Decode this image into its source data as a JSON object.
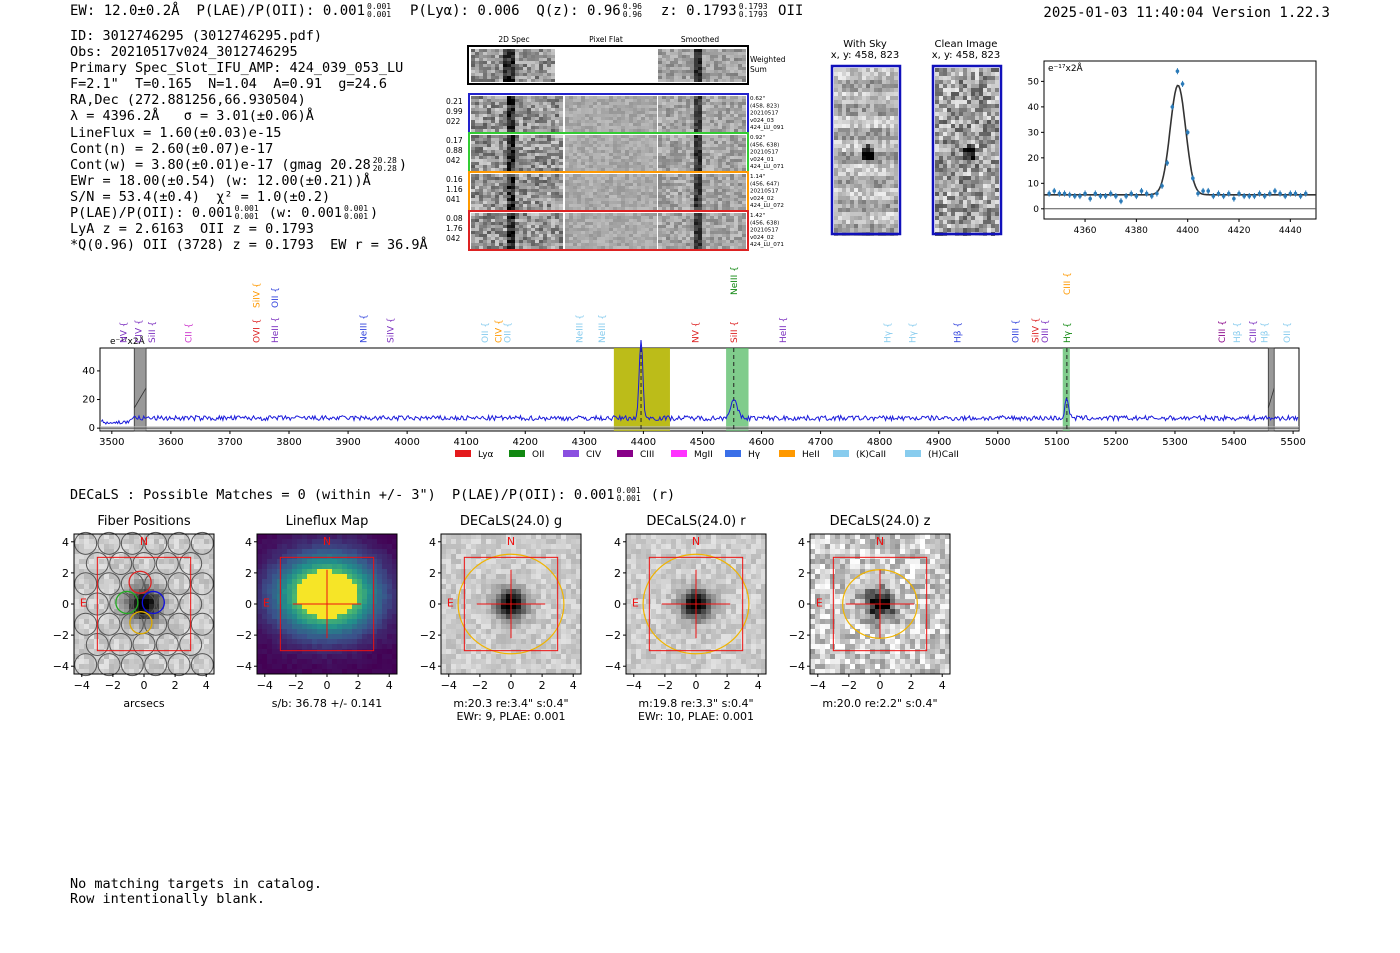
{
  "header": {
    "ew_label": "EW: 12.0±0.2Å",
    "plae_label": "P(LAE)/P(OII): 0.001",
    "plae_hi": "0.001",
    "plae_lo": "0.001",
    "plya_label": "P(Lyα): 0.006",
    "qz_label": "Q(z): 0.96",
    "qz_hi": "0.96",
    "qz_lo": "0.96",
    "z_label": "z: 0.1793",
    "z_hi": "0.1793",
    "z_lo": "0.1793",
    "line_name": "OII",
    "timestamp": "2025-01-03 11:40:04",
    "version": "Version 1.22.3"
  },
  "info": {
    "id": "ID: 3012746295 (3012746295.pdf)",
    "obs": "Obs: 20210517v024_3012746295",
    "primary": "Primary Spec_Slot_IFU_AMP: 424_039_053_LU",
    "fwhm": "F=2.1\"  T=0.165  N=1.04  A=0.91  g=24.6",
    "radec": "RA,Dec (272.881256,66.930504)",
    "lambda": "λ = 4396.2Å   σ = 3.01(±0.06)Å",
    "lineflux": "LineFlux = 1.60(±0.03)e-15",
    "contn": "Cont(n) = 2.60(±0.07)e-17",
    "contw": "Cont(w) = 3.80(±0.01)e-17 (gmag 20.28",
    "gmag_hi": "20.28",
    "gmag_lo": "20.28",
    "ewr": "EWr = 18.00(±0.54) (w: 12.00(±0.21))Å",
    "sn": "S/N = 53.4(±0.4)  χ² = 1.0(±0.2)",
    "plae_a": "P(LAE)/P(OII): 0.001",
    "plae_a_hi": "0.001",
    "plae_a_lo": "0.001",
    "plae_b": "(w: 0.001",
    "plae_b_hi": "0.001",
    "plae_b_lo": "0.001",
    "lya": "LyA z = 2.6163  OII z = 0.1793",
    "q": "*Q(0.96) OII (3728) z = 0.1793  EW r = 36.9Å"
  },
  "cutouts": {
    "col_titles": [
      "2D Spec",
      "Pixel Flat",
      "Smoothed"
    ],
    "weighted_sum": [
      "Weighted",
      "Sum"
    ],
    "rows": [
      {
        "left": [
          "0.21",
          "0.99",
          "022"
        ],
        "right": [
          "0.62\"",
          "(458, 823)",
          "20210517",
          "v024_03",
          "424_LU_091"
        ],
        "color": "#2222cc"
      },
      {
        "left": [
          "0.17",
          "0.88",
          "042"
        ],
        "right": [
          "0.92\"",
          "(456, 638)",
          "20210517",
          "v024_01",
          "424_LU_071"
        ],
        "color": "#33cc33"
      },
      {
        "left": [
          "0.16",
          "1.16",
          "041"
        ],
        "right": [
          "1.14\"",
          "(456, 647)",
          "20210517",
          "v024_02",
          "424_LU_072"
        ],
        "color": "#ff9900"
      },
      {
        "left": [
          "0.08",
          "1.76",
          "042"
        ],
        "right": [
          "1.42\"",
          "(456, 638)",
          "20210517",
          "v024_02",
          "424_LU_071"
        ],
        "color": "#dd2222"
      }
    ]
  },
  "sky": {
    "with_sky": "With Sky",
    "with_sky_xy": "x, y: 458, 823",
    "clean": "Clean Image",
    "clean_xy": "x, y: 458, 823"
  },
  "zoom_chart": {
    "scale_label": "e⁻¹⁷x2Å"
  },
  "chart_data": [
    {
      "type": "scatter",
      "title": "",
      "xlabel": "",
      "ylabel": "e-17 x2Å",
      "xlim": [
        4344,
        4450
      ],
      "ylim": [
        -4,
        58
      ],
      "xticks": [
        4360,
        4380,
        4400,
        4420,
        4440
      ],
      "yticks": [
        0,
        10,
        20,
        30,
        40,
        50
      ],
      "x": [
        4346,
        4348,
        4350,
        4352,
        4354,
        4356,
        4358,
        4360,
        4362,
        4364,
        4366,
        4368,
        4370,
        4372,
        4374,
        4376,
        4378,
        4380,
        4382,
        4384,
        4386,
        4388,
        4390,
        4392,
        4394,
        4396,
        4398,
        4400,
        4402,
        4404,
        4406,
        4408,
        4410,
        4412,
        4414,
        4416,
        4418,
        4420,
        4422,
        4424,
        4426,
        4428,
        4430,
        4432,
        4434,
        4436,
        4438,
        4440,
        4442,
        4444,
        4446
      ],
      "y": [
        6,
        7,
        6,
        6,
        5.5,
        5,
        5,
        6,
        4,
        6,
        5,
        5,
        6,
        5,
        3,
        5,
        6,
        5,
        7,
        6,
        5,
        6,
        9,
        18,
        40,
        54,
        49,
        30,
        12,
        6,
        7,
        7,
        5,
        6,
        5,
        6,
        4,
        6,
        5,
        5,
        5,
        6,
        5,
        6,
        7,
        6,
        5,
        6,
        6,
        5,
        6
      ],
      "fit_center": 4396.2,
      "fit_sigma": 3.01,
      "fit_amp": 43,
      "fit_cont": 5.5
    },
    {
      "type": "line",
      "title": "",
      "xlabel": "",
      "ylabel": "e-17 x2Å",
      "xlim": [
        3480,
        5510
      ],
      "ylim": [
        -2,
        56
      ],
      "xticks": [
        3500,
        3600,
        3700,
        3800,
        3900,
        4000,
        4100,
        4200,
        4300,
        4400,
        4500,
        4600,
        4700,
        4800,
        4900,
        5000,
        5100,
        5200,
        5300,
        5400,
        5500
      ],
      "yticks": [
        0,
        20,
        40
      ],
      "continuum": 7,
      "peaks": [
        {
          "x": 4396,
          "y": 55,
          "w": 3
        },
        {
          "x": 4553,
          "y": 12,
          "w": 6
        },
        {
          "x": 5117,
          "y": 14,
          "w": 3
        }
      ],
      "highlight_bands": [
        {
          "x0": 4350,
          "x1": 4445,
          "color": "#b5b500"
        },
        {
          "x0": 4540,
          "x1": 4578,
          "color": "#55bb66"
        },
        {
          "x0": 5110,
          "x1": 5122,
          "color": "#55bb66"
        }
      ],
      "masked_bands": [
        {
          "x0": 3538,
          "x1": 3558
        },
        {
          "x0": 5458,
          "x1": 5468
        }
      ],
      "dashed_lines": [
        4396,
        4553,
        5117
      ],
      "line_labels": [
        {
          "x": 3520,
          "label": "NV",
          "color": "#7b2fbf",
          "row": 0
        },
        {
          "x": 3545,
          "label": "CIV",
          "color": "#7b2fbf",
          "row": 0
        },
        {
          "x": 3568,
          "label": "SiII",
          "color": "#7b2fbf",
          "row": 0
        },
        {
          "x": 3630,
          "label": "CII",
          "color": "#cc33cc",
          "row": 0
        },
        {
          "x": 3745,
          "label": "SiIV",
          "color": "#ff9900",
          "row": 1
        },
        {
          "x": 3745,
          "label": "OVI",
          "color": "#dd2222",
          "row": 0
        },
        {
          "x": 3776,
          "label": "OII",
          "color": "#3344dd",
          "row": 1
        },
        {
          "x": 3776,
          "label": "HeII",
          "color": "#7b2fbf",
          "row": 0
        },
        {
          "x": 3926,
          "label": "NeIII",
          "color": "#3344dd",
          "row": 0
        },
        {
          "x": 3972,
          "label": "SiIV",
          "color": "#7b2fbf",
          "row": 0
        },
        {
          "x": 4132,
          "label": "OII",
          "color": "#88ccee",
          "row": 0
        },
        {
          "x": 4155,
          "label": "CIV",
          "color": "#ff9900",
          "row": 0
        },
        {
          "x": 4170,
          "label": "OII",
          "color": "#88ccee",
          "row": 0
        },
        {
          "x": 4292,
          "label": "NeIII",
          "color": "#88ccee",
          "row": 0
        },
        {
          "x": 4330,
          "label": "NeIII",
          "color": "#88ccee",
          "row": 0
        },
        {
          "x": 4488,
          "label": "NV",
          "color": "#dd2222",
          "row": 0
        },
        {
          "x": 4553,
          "label": "NeIII",
          "color": "#118811",
          "row": 2
        },
        {
          "x": 4553,
          "label": "SiII",
          "color": "#dd2222",
          "row": 0
        },
        {
          "x": 4636,
          "label": "HeII",
          "color": "#7b2fbf",
          "row": 0
        },
        {
          "x": 4813,
          "label": "Hγ",
          "color": "#88ccee",
          "row": 0
        },
        {
          "x": 4856,
          "label": "Hγ",
          "color": "#88ccee",
          "row": 0
        },
        {
          "x": 4932,
          "label": "Hβ",
          "color": "#3344dd",
          "row": 0
        },
        {
          "x": 5030,
          "label": "OIII",
          "color": "#3344dd",
          "row": 0
        },
        {
          "x": 5064,
          "label": "SiIV",
          "color": "#dd2222",
          "row": 0
        },
        {
          "x": 5080,
          "label": "OIII",
          "color": "#7b2fbf",
          "row": 0
        },
        {
          "x": 5117,
          "label": "CIII",
          "color": "#ff9900",
          "row": 2
        },
        {
          "x": 5117,
          "label": "Hγ",
          "color": "#118811",
          "row": 0
        },
        {
          "x": 5380,
          "label": "CIII",
          "color": "#880088",
          "row": 0
        },
        {
          "x": 5405,
          "label": "Hβ",
          "color": "#88ccee",
          "row": 0
        },
        {
          "x": 5432,
          "label": "CIII",
          "color": "#7b2fbf",
          "row": 0
        },
        {
          "x": 5452,
          "label": "Hβ",
          "color": "#88ccee",
          "row": 0
        },
        {
          "x": 5490,
          "label": "OII",
          "color": "#88ccee",
          "row": 0
        }
      ],
      "legend": [
        {
          "label": "Lyα",
          "color": "#e41a1c"
        },
        {
          "label": "OII",
          "color": "#118811"
        },
        {
          "label": "CIV",
          "color": "#8a4fe0"
        },
        {
          "label": "CIII",
          "color": "#880088"
        },
        {
          "label": "MgII",
          "color": "#ff33ff"
        },
        {
          "label": "Hγ",
          "color": "#3a6fe8"
        },
        {
          "label": "HeII",
          "color": "#ff9900"
        },
        {
          "label": "(K)CaII",
          "color": "#88ccee"
        },
        {
          "label": "(H)CaII",
          "color": "#88ccee"
        }
      ],
      "scale_label": "e⁻¹⁷x2Å"
    }
  ],
  "decals": {
    "line_prefix": "DECaLS : Possible Matches = 0 (within +/- 3\")  P(LAE)/P(OII): 0.001",
    "frac_hi": "0.001",
    "frac_lo": "0.001",
    "suffix": "(r)"
  },
  "panels": [
    {
      "title": "Fiber Positions",
      "sub1": "arcsecs",
      "sub2": "",
      "kind": "fibers"
    },
    {
      "title": "Lineflux Map",
      "sub1": "s/b: 36.78 +/- 0.141",
      "sub2": "",
      "kind": "flux"
    },
    {
      "title": "DECaLS(24.0) g",
      "sub1": "m:20.3  re:3.4\"  s:0.4\"",
      "sub2": "EWr: 9, PLAE: 0.001",
      "kind": "g"
    },
    {
      "title": "DECaLS(24.0) r",
      "sub1": "m:19.8  re:3.3\"  s:0.4\"",
      "sub2": "EWr: 10, PLAE: 0.001",
      "kind": "r"
    },
    {
      "title": "DECaLS(24.0) z",
      "sub1": "m:20.0  re:2.2\"  s:0.4\"",
      "sub2": "",
      "kind": "z"
    }
  ],
  "panel_axes": {
    "ticks": [
      "−4",
      "−2",
      "0",
      "2",
      "4"
    ],
    "north": "N",
    "east": "E"
  },
  "footer": {
    "line1": "No matching targets in catalog.",
    "line2": "Row intentionally blank."
  }
}
